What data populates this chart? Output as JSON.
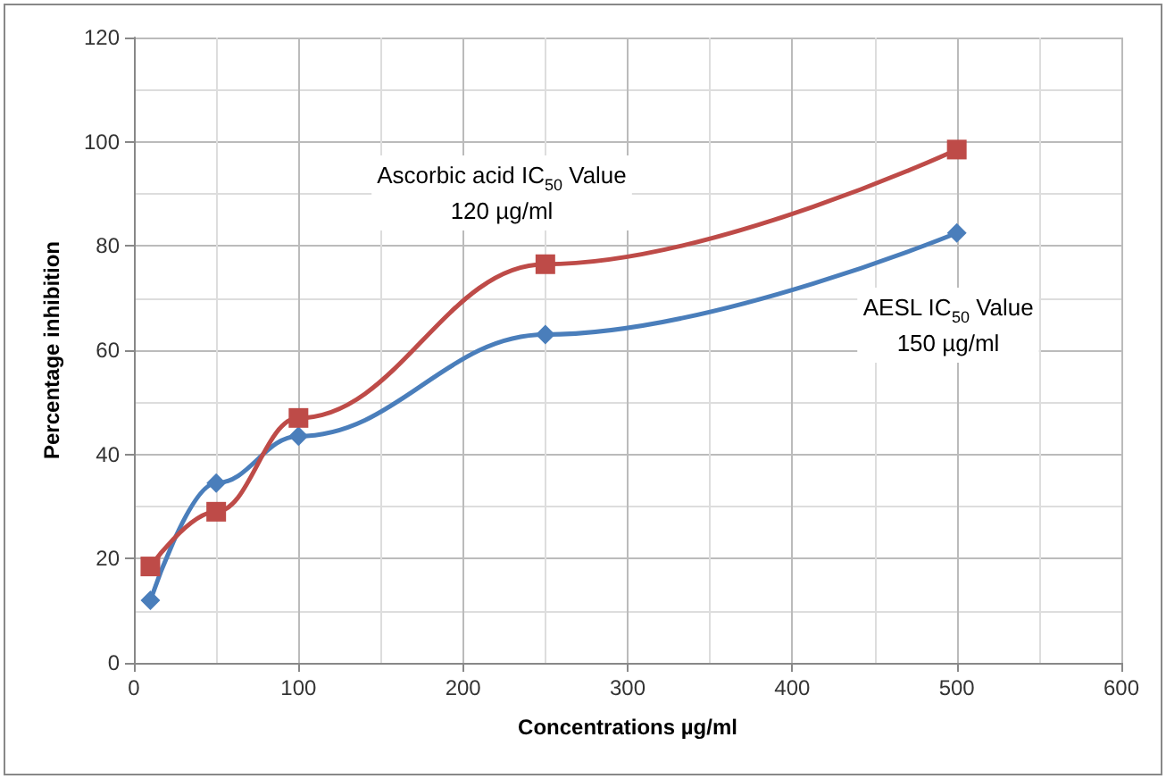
{
  "chart_data": {
    "type": "line",
    "xlabel": "Concentrations µg/ml",
    "ylabel": "Percentage inhibition",
    "annotations": [
      "Ascorbic acid IC$_{50}$ Value\n120 µg/ml",
      "AESL IC$_{50}$ Value\n150 µg/ml"
    ],
    "series": [
      {
        "color": "#4a7ebb",
        "marker": "diamond",
        "x": [
          10,
          50,
          100,
          250,
          500
        ],
        "values": [
          12,
          34.5,
          43.5,
          63,
          82.5
        ]
      },
      {
        "color": "#be4b48",
        "marker": "square",
        "x": [
          10,
          50,
          100,
          250,
          500
        ],
        "values": [
          18.5,
          29,
          47,
          76.5,
          98.5
        ]
      }
    ],
    "xlim": [
      0,
      600
    ],
    "xticks": [
      0,
      100,
      200,
      300,
      400,
      500,
      600
    ],
    "ylim": [
      0,
      120
    ],
    "yticks": [
      0,
      20,
      40,
      60,
      80,
      100,
      120
    ],
    "grid": true,
    "line_style": "solid"
  }
}
